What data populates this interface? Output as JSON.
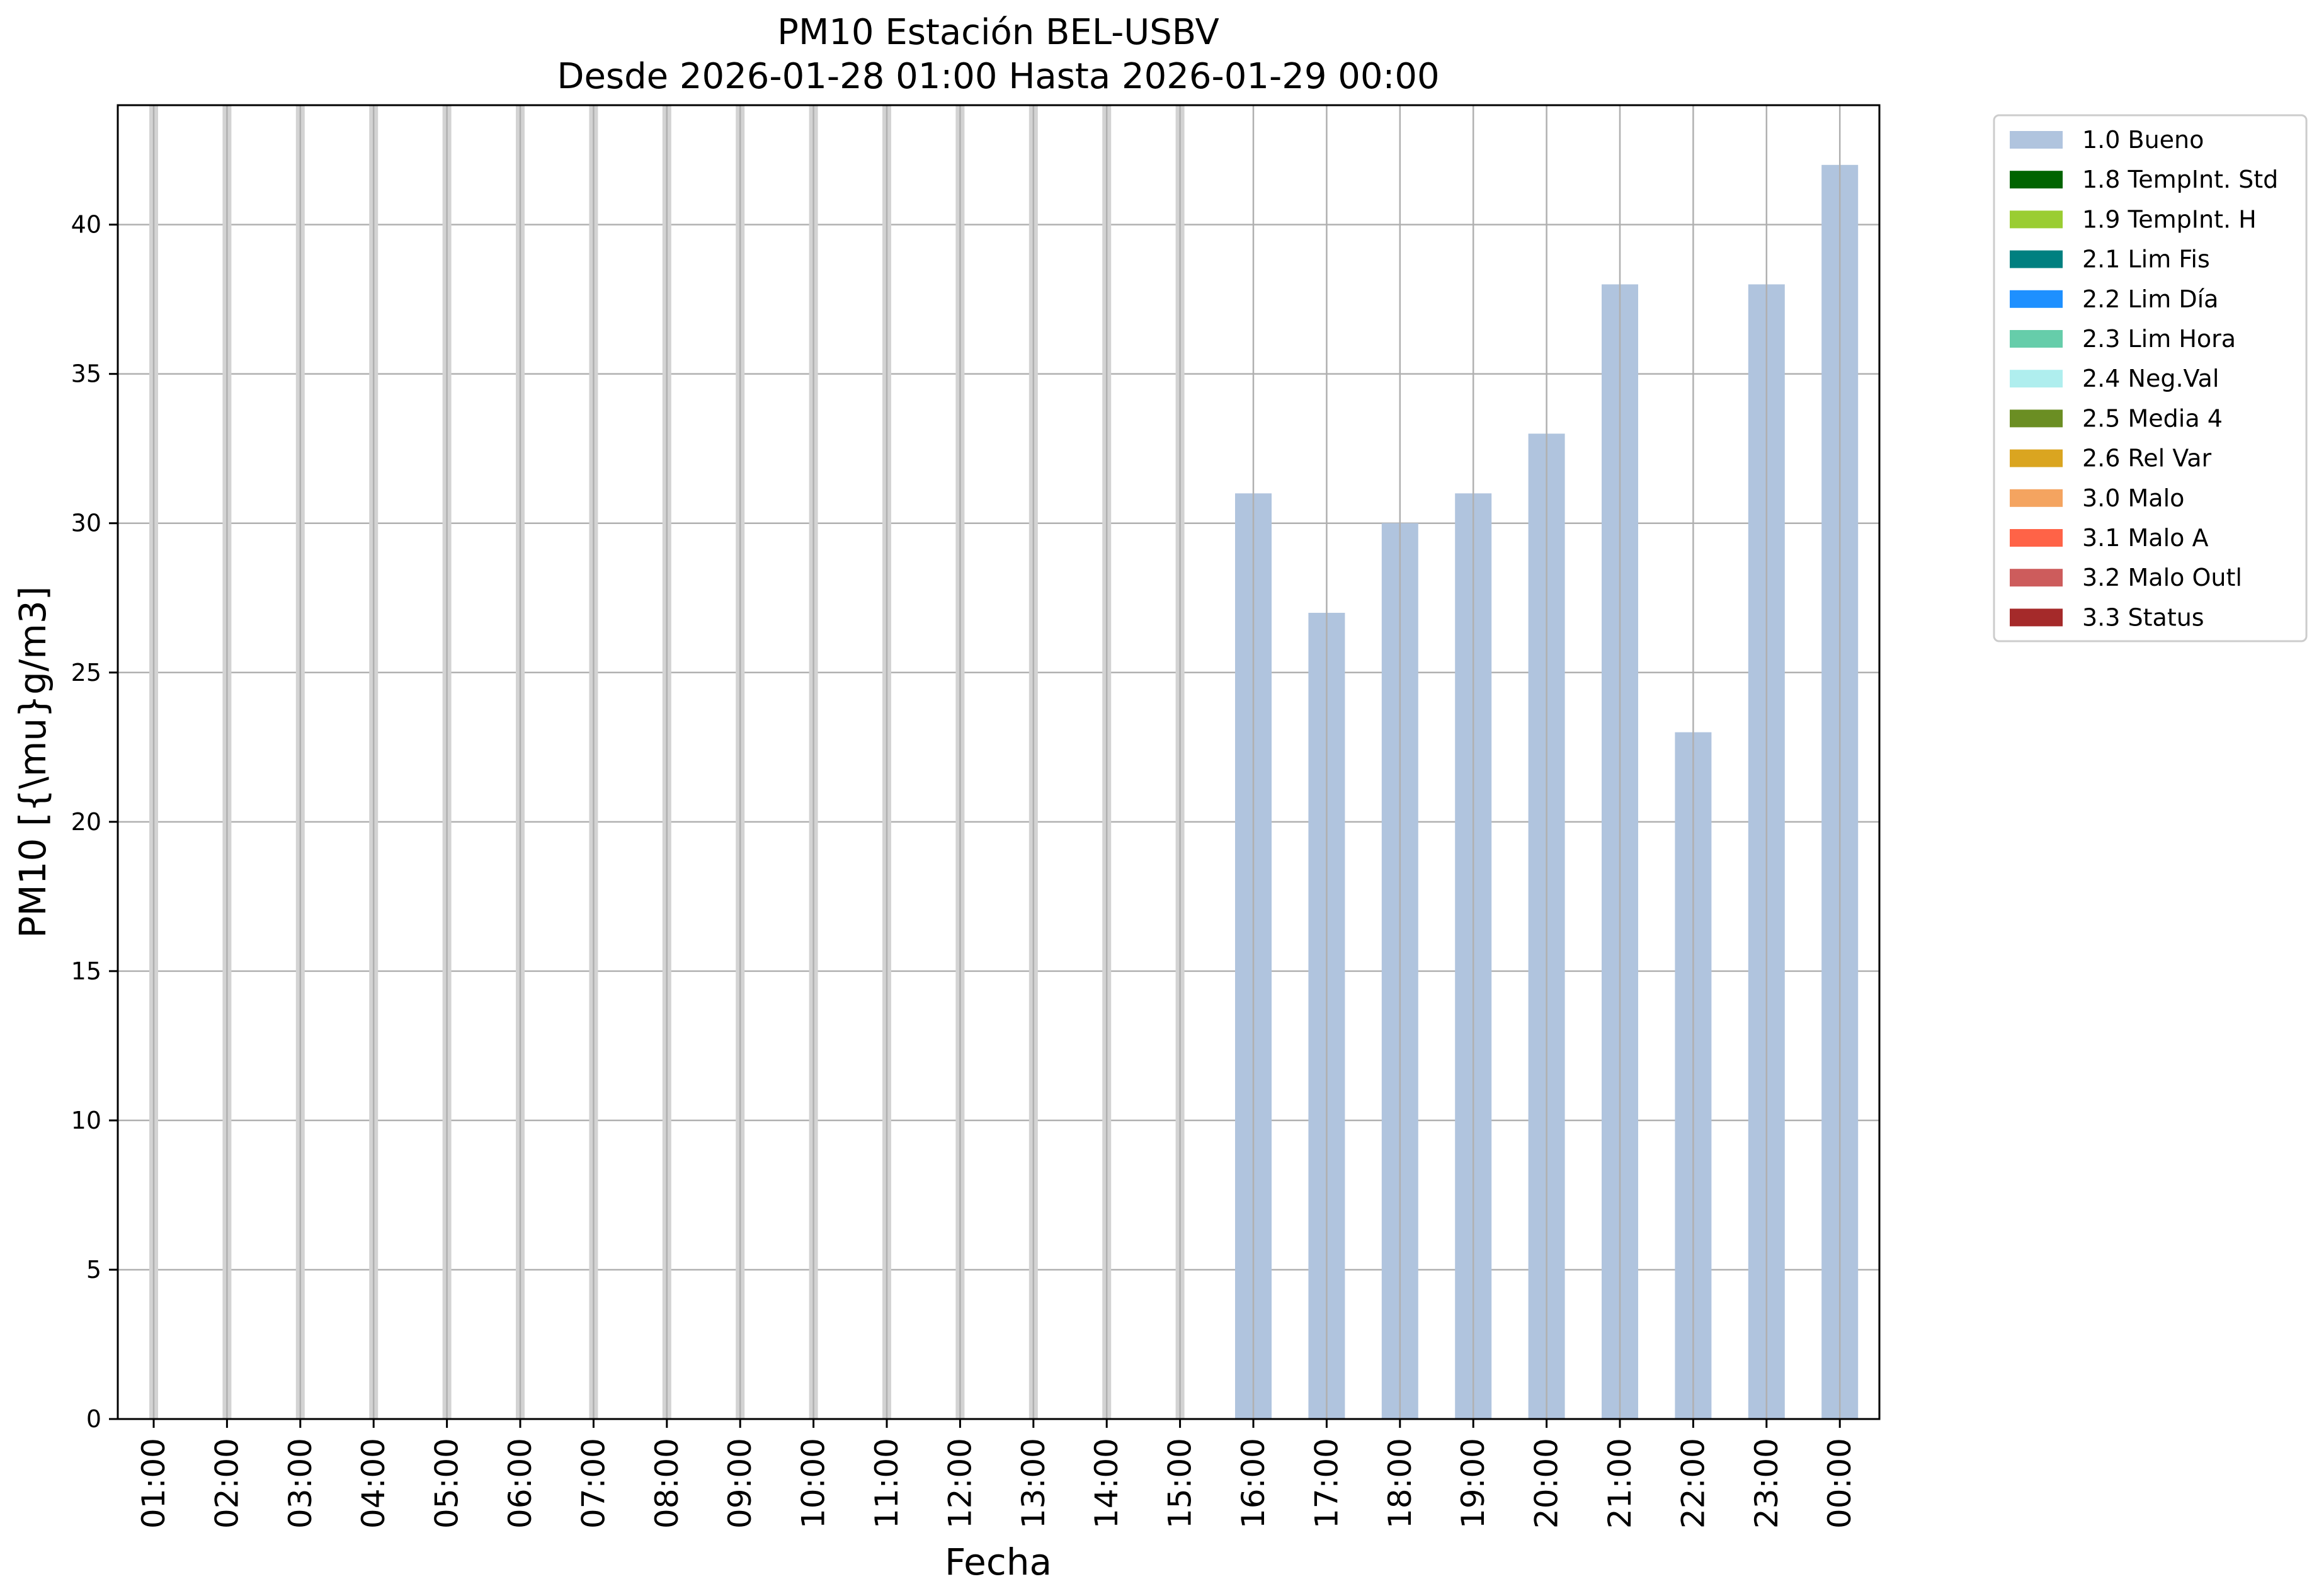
{
  "chart_data": {
    "type": "bar",
    "title": "PM10 Estación BEL-USBV",
    "subtitle": "Desde 2026-01-28 01:00 Hasta 2026-01-29 00:00",
    "xlabel": "Fecha",
    "ylabel": "PM10 [{\\mu}g/m3]",
    "categories": [
      "01:00",
      "02:00",
      "03:00",
      "04:00",
      "05:00",
      "06:00",
      "07:00",
      "08:00",
      "09:00",
      "10:00",
      "11:00",
      "12:00",
      "13:00",
      "14:00",
      "15:00",
      "16:00",
      "17:00",
      "18:00",
      "19:00",
      "20:00",
      "21:00",
      "22:00",
      "23:00",
      "00:00"
    ],
    "series": [
      {
        "name": "1.0 Bueno",
        "color": "#b0c4de",
        "values": [
          null,
          null,
          null,
          null,
          null,
          null,
          null,
          null,
          null,
          null,
          null,
          null,
          null,
          null,
          null,
          31,
          27,
          30,
          31,
          33,
          38,
          23,
          38,
          42
        ]
      }
    ],
    "ylim": [
      0,
      44
    ],
    "yticks": [
      0,
      5,
      10,
      15,
      20,
      25,
      30,
      35,
      40
    ],
    "grid": true,
    "legend_position": "outside-right-top",
    "legend": [
      {
        "label": "1.0 Bueno",
        "color": "#b0c4de"
      },
      {
        "label": "1.8 TempInt. Std",
        "color": "#006400"
      },
      {
        "label": "1.9 TempInt. H",
        "color": "#9acd32"
      },
      {
        "label": "2.1 Lim Fis",
        "color": "#008080"
      },
      {
        "label": "2.2 Lim Día",
        "color": "#1e90ff"
      },
      {
        "label": "2.3 Lim Hora",
        "color": "#66cdaa"
      },
      {
        "label": "2.4 Neg.Val",
        "color": "#afeeee"
      },
      {
        "label": "2.5 Media 4",
        "color": "#6b8e23"
      },
      {
        "label": "2.6 Rel Var",
        "color": "#daa520"
      },
      {
        "label": "3.0 Malo",
        "color": "#f4a460"
      },
      {
        "label": "3.1 Malo A",
        "color": "#ff6347"
      },
      {
        "label": "3.2 Malo Outl",
        "color": "#cd5c5c"
      },
      {
        "label": "3.3 Status",
        "color": "#a52a2a"
      }
    ],
    "missing_marker_color": "#d3d3d3"
  }
}
